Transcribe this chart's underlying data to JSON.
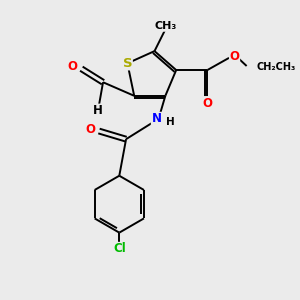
{
  "bg_color": "#ebebeb",
  "atom_colors": {
    "S": "#aaaa00",
    "O": "#ff0000",
    "N": "#0000ff",
    "Cl": "#00bb00",
    "C": "#000000",
    "H": "#000000"
  },
  "bond_color": "#000000",
  "font_size": 8.5
}
